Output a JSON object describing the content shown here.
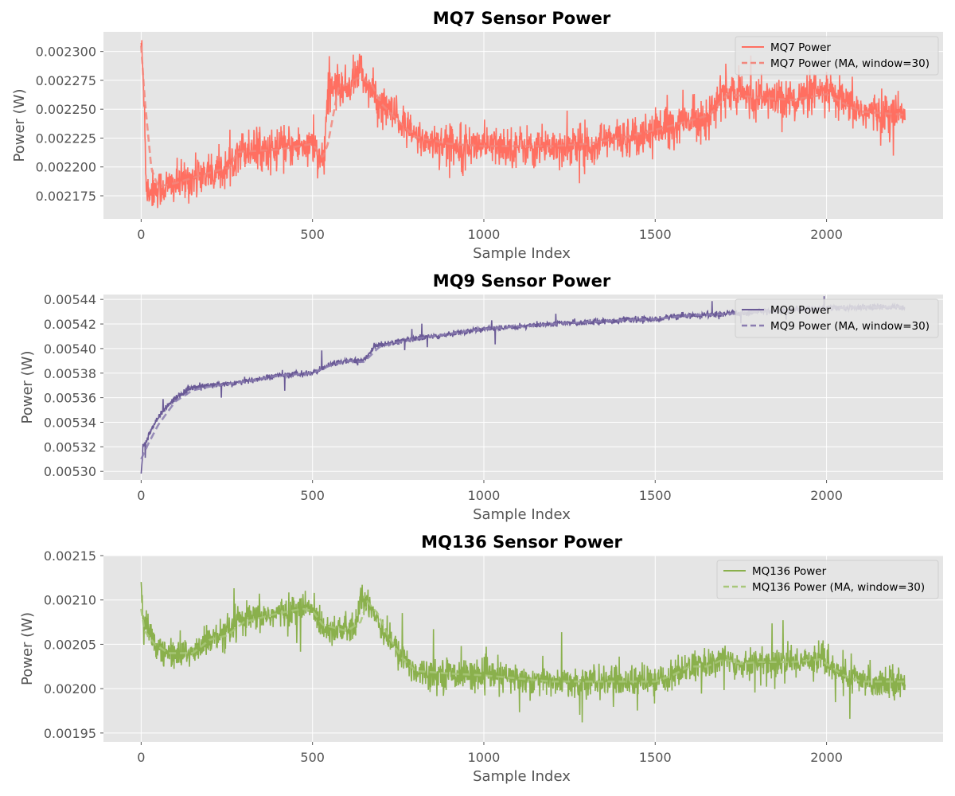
{
  "chart_data": [
    {
      "type": "line",
      "title": "MQ7 Sensor Power",
      "xlabel": "Sample Index",
      "ylabel": "Power (W)",
      "xlim": [
        -110,
        2340
      ],
      "ylim": [
        0.002155,
        0.002317
      ],
      "xticks": [
        0,
        500,
        1000,
        1500,
        2000
      ],
      "xtick_labels": [
        "0",
        "500",
        "1000",
        "1500",
        "2000"
      ],
      "yticks": [
        0.002175,
        0.0022,
        0.002225,
        0.00225,
        0.002275,
        0.0023
      ],
      "ytick_labels": [
        "0.002175",
        "0.002200",
        "0.002225",
        "0.002250",
        "0.002275",
        "0.002300"
      ],
      "grid": true,
      "legend_position": "top-right",
      "n_samples": 2230,
      "series": [
        {
          "name": "MQ7 Power",
          "color": "#ff6f61",
          "style": "solid",
          "noise": 8.5e-06,
          "spike_prob": 0.012,
          "spike_size": 2.5e-05,
          "points": [
            [
              0,
              0.00231
            ],
            [
              10,
              0.00225
            ],
            [
              15,
              0.00218
            ],
            [
              30,
              0.00218
            ],
            [
              100,
              0.002185
            ],
            [
              200,
              0.002195
            ],
            [
              260,
              0.0022
            ],
            [
              280,
              0.002215
            ],
            [
              400,
              0.002215
            ],
            [
              500,
              0.00222
            ],
            [
              520,
              0.002205
            ],
            [
              535,
              0.002205
            ],
            [
              545,
              0.00227
            ],
            [
              600,
              0.002268
            ],
            [
              640,
              0.002285
            ],
            [
              660,
              0.00227
            ],
            [
              700,
              0.002255
            ],
            [
              750,
              0.00224
            ],
            [
              800,
              0.002225
            ],
            [
              900,
              0.00222
            ],
            [
              1000,
              0.002218
            ],
            [
              1200,
              0.002218
            ],
            [
              1300,
              0.00222
            ],
            [
              1400,
              0.002225
            ],
            [
              1500,
              0.002232
            ],
            [
              1600,
              0.00224
            ],
            [
              1660,
              0.002245
            ],
            [
              1700,
              0.002265
            ],
            [
              1800,
              0.00226
            ],
            [
              1900,
              0.002258
            ],
            [
              2000,
              0.002265
            ],
            [
              2050,
              0.002255
            ],
            [
              2100,
              0.002248
            ],
            [
              2230,
              0.002245
            ]
          ]
        },
        {
          "name": "MQ7 Power (MA, window=30)",
          "color": "#f2877d",
          "style": "dashed",
          "points": [
            [
              0,
              0.002305
            ],
            [
              10,
              0.00226
            ],
            [
              30,
              0.002198
            ],
            [
              50,
              0.002183
            ],
            [
              100,
              0.002186
            ],
            [
              200,
              0.002195
            ],
            [
              260,
              0.0022
            ],
            [
              280,
              0.002213
            ],
            [
              400,
              0.002215
            ],
            [
              500,
              0.00222
            ],
            [
              530,
              0.002208
            ],
            [
              545,
              0.00222
            ],
            [
              575,
              0.002268
            ],
            [
              640,
              0.002278
            ],
            [
              675,
              0.00227
            ],
            [
              700,
              0.002255
            ],
            [
              750,
              0.00224
            ],
            [
              800,
              0.002226
            ],
            [
              900,
              0.00222
            ],
            [
              1000,
              0.002218
            ],
            [
              1200,
              0.002218
            ],
            [
              1300,
              0.00222
            ],
            [
              1400,
              0.002225
            ],
            [
              1500,
              0.002232
            ],
            [
              1600,
              0.00224
            ],
            [
              1660,
              0.002245
            ],
            [
              1710,
              0.002263
            ],
            [
              1800,
              0.00226
            ],
            [
              1900,
              0.002258
            ],
            [
              2000,
              0.002263
            ],
            [
              2050,
              0.002255
            ],
            [
              2100,
              0.002248
            ],
            [
              2230,
              0.002245
            ]
          ]
        }
      ]
    },
    {
      "type": "line",
      "title": "MQ9 Sensor Power",
      "xlabel": "Sample Index",
      "ylabel": "Power (W)",
      "xlim": [
        -110,
        2340
      ],
      "ylim": [
        0.005293,
        0.005444
      ],
      "xticks": [
        0,
        500,
        1000,
        1500,
        2000
      ],
      "xtick_labels": [
        "0",
        "500",
        "1000",
        "1500",
        "2000"
      ],
      "yticks": [
        0.0053,
        0.00532,
        0.00534,
        0.00536,
        0.00538,
        0.0054,
        0.00542,
        0.00544
      ],
      "ytick_labels": [
        "0.00530",
        "0.00532",
        "0.00534",
        "0.00536",
        "0.00538",
        "0.00540",
        "0.00542",
        "0.00544"
      ],
      "grid": true,
      "legend_position": "top-right",
      "n_samples": 2230,
      "series": [
        {
          "name": "MQ9 Power",
          "color": "#6a5a96",
          "style": "solid",
          "noise": 1.2e-06,
          "spike_prob": 0.006,
          "spike_size": 1.2e-05,
          "points": [
            [
              0,
              0.005297
            ],
            [
              5,
              0.00532
            ],
            [
              20,
              0.005328
            ],
            [
              50,
              0.005345
            ],
            [
              100,
              0.00536
            ],
            [
              150,
              0.005368
            ],
            [
              200,
              0.00537
            ],
            [
              300,
              0.005373
            ],
            [
              400,
              0.005378
            ],
            [
              500,
              0.00538
            ],
            [
              550,
              0.005387
            ],
            [
              600,
              0.00539
            ],
            [
              650,
              0.00539
            ],
            [
              680,
              0.005402
            ],
            [
              700,
              0.005403
            ],
            [
              800,
              0.005408
            ],
            [
              900,
              0.005412
            ],
            [
              1000,
              0.005416
            ],
            [
              1200,
              0.00542
            ],
            [
              1400,
              0.005423
            ],
            [
              1500,
              0.005424
            ],
            [
              1600,
              0.005427
            ],
            [
              1700,
              0.005428
            ],
            [
              1800,
              0.00543
            ],
            [
              2000,
              0.005433
            ],
            [
              2230,
              0.005434
            ]
          ]
        },
        {
          "name": "MQ9 Power (MA, window=30)",
          "color": "#8a7cb0",
          "style": "dashed",
          "points": [
            [
              0,
              0.00531
            ],
            [
              20,
              0.005322
            ],
            [
              50,
              0.005338
            ],
            [
              100,
              0.005357
            ],
            [
              150,
              0.005366
            ],
            [
              200,
              0.005369
            ],
            [
              300,
              0.005373
            ],
            [
              400,
              0.005378
            ],
            [
              500,
              0.00538
            ],
            [
              550,
              0.005386
            ],
            [
              600,
              0.00539
            ],
            [
              650,
              0.005389
            ],
            [
              690,
              0.0054
            ],
            [
              700,
              0.005402
            ],
            [
              800,
              0.005408
            ],
            [
              900,
              0.005412
            ],
            [
              1000,
              0.005416
            ],
            [
              1200,
              0.00542
            ],
            [
              1400,
              0.005423
            ],
            [
              1500,
              0.005424
            ],
            [
              1600,
              0.005427
            ],
            [
              1700,
              0.005428
            ],
            [
              1800,
              0.00543
            ],
            [
              2000,
              0.005433
            ],
            [
              2230,
              0.005434
            ]
          ]
        }
      ]
    },
    {
      "type": "line",
      "title": "MQ136 Sensor Power",
      "xlabel": "Sample Index",
      "ylabel": "Power (W)",
      "xlim": [
        -110,
        2340
      ],
      "ylim": [
        0.00194,
        0.00215
      ],
      "xticks": [
        0,
        500,
        1000,
        1500,
        2000
      ],
      "xtick_labels": [
        "0",
        "500",
        "1000",
        "1500",
        "2000"
      ],
      "yticks": [
        0.00195,
        0.002,
        0.00205,
        0.0021,
        0.00215
      ],
      "ytick_labels": [
        "0.00195",
        "0.00200",
        "0.00205",
        "0.00210",
        "0.00215"
      ],
      "grid": true,
      "legend_position": "top-right",
      "n_samples": 2230,
      "series": [
        {
          "name": "MQ136 Power",
          "color": "#8ab04c",
          "style": "solid",
          "noise": 8.5e-06,
          "spike_prob": 0.014,
          "spike_size": 4e-05,
          "points": [
            [
              0,
              0.00211
            ],
            [
              8,
              0.00207
            ],
            [
              30,
              0.00206
            ],
            [
              60,
              0.00204
            ],
            [
              150,
              0.00204
            ],
            [
              200,
              0.002055
            ],
            [
              250,
              0.00206
            ],
            [
              280,
              0.002075
            ],
            [
              400,
              0.002085
            ],
            [
              470,
              0.00209
            ],
            [
              500,
              0.00209
            ],
            [
              530,
              0.00207
            ],
            [
              600,
              0.002065
            ],
            [
              630,
              0.00207
            ],
            [
              640,
              0.002105
            ],
            [
              660,
              0.0021
            ],
            [
              700,
              0.00207
            ],
            [
              750,
              0.00204
            ],
            [
              800,
              0.00202
            ],
            [
              900,
              0.002017
            ],
            [
              1000,
              0.002015
            ],
            [
              1200,
              0.002008
            ],
            [
              1400,
              0.002008
            ],
            [
              1500,
              0.002008
            ],
            [
              1550,
              0.002015
            ],
            [
              1600,
              0.002025
            ],
            [
              1650,
              0.002025
            ],
            [
              1700,
              0.002035
            ],
            [
              1750,
              0.002028
            ],
            [
              1800,
              0.00203
            ],
            [
              1900,
              0.00203
            ],
            [
              1980,
              0.002035
            ],
            [
              2050,
              0.002015
            ],
            [
              2100,
              0.002008
            ],
            [
              2230,
              0.002008
            ]
          ]
        },
        {
          "name": "MQ136 Power (MA, window=30)",
          "color": "#a8c77a",
          "style": "dashed",
          "points": [
            [
              0,
              0.00209
            ],
            [
              10,
              0.002065
            ],
            [
              40,
              0.00205
            ],
            [
              80,
              0.00204
            ],
            [
              150,
              0.00204
            ],
            [
              200,
              0.002055
            ],
            [
              250,
              0.00206
            ],
            [
              300,
              0.002075
            ],
            [
              400,
              0.002085
            ],
            [
              470,
              0.00209
            ],
            [
              500,
              0.002088
            ],
            [
              530,
              0.002072
            ],
            [
              600,
              0.002065
            ],
            [
              640,
              0.002075
            ],
            [
              660,
              0.002098
            ],
            [
              690,
              0.002085
            ],
            [
              720,
              0.00206
            ],
            [
              760,
              0.002035
            ],
            [
              800,
              0.00202
            ],
            [
              900,
              0.002017
            ],
            [
              1000,
              0.002015
            ],
            [
              1200,
              0.002008
            ],
            [
              1400,
              0.002008
            ],
            [
              1500,
              0.002008
            ],
            [
              1550,
              0.002015
            ],
            [
              1600,
              0.002025
            ],
            [
              1650,
              0.002025
            ],
            [
              1700,
              0.002033
            ],
            [
              1750,
              0.002028
            ],
            [
              1800,
              0.00203
            ],
            [
              1900,
              0.00203
            ],
            [
              1980,
              0.002033
            ],
            [
              2050,
              0.002015
            ],
            [
              2100,
              0.002008
            ],
            [
              2230,
              0.002008
            ]
          ]
        }
      ]
    }
  ]
}
